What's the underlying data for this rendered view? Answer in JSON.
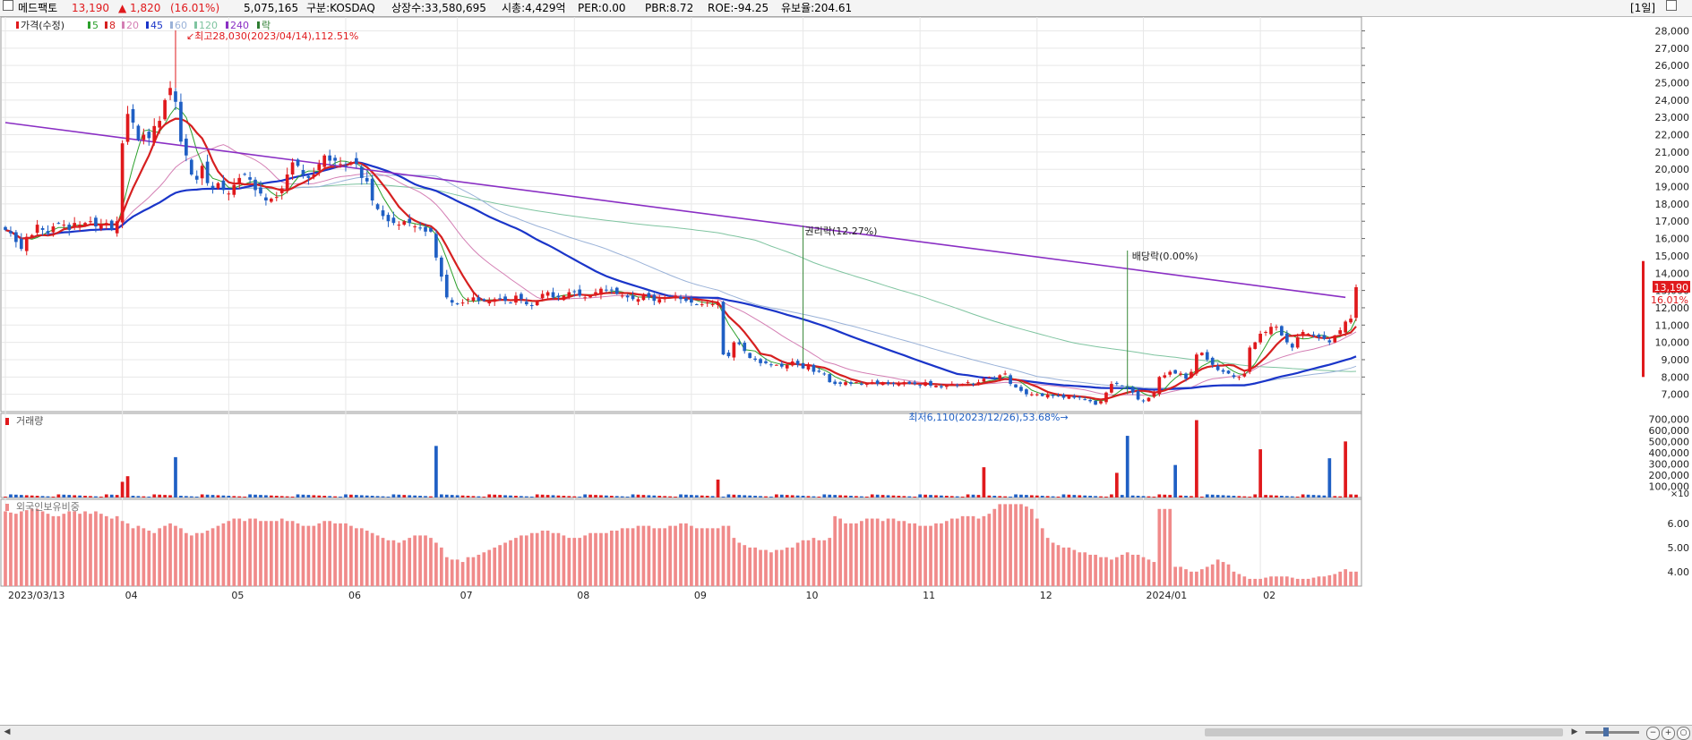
{
  "header": {
    "stock_name": "메드팩토",
    "price": "13,190",
    "change": "▲ 1,820",
    "change_pct": "(16.01%)",
    "volume": "5,075,165",
    "market": "구분:KOSDAQ",
    "shares": "상장수:33,580,695",
    "market_cap": "시총:4,429억",
    "per": "PER:0.00",
    "pbr": "PBR:8.72",
    "roe": "ROE:-94.25",
    "float_ratio": "유보율:204.61",
    "period_label": "[1일]"
  },
  "colors": {
    "up": "#e0191c",
    "down": "#1f5fc4",
    "ma5": "#2ca02c",
    "ma8": "#d62020",
    "ma20": "#d47fb4",
    "ma45": "#1a35c9",
    "ma60": "#9ab2d8",
    "ma120": "#7fc4a0",
    "ma240": "#8a2fc4",
    "foreign_bar": "#f08a8a",
    "grid": "#e8e8e8"
  },
  "chart_data": [
    {
      "type": "candlestick",
      "title": "",
      "legend": [
        "가격(수정)",
        "5",
        "8",
        "20",
        "45",
        "60",
        "120",
        "240",
        "락"
      ],
      "x_labels": [
        "2023/03/13",
        "04",
        "05",
        "06",
        "07",
        "08",
        "09",
        "10",
        "11",
        "12",
        "2024/01",
        "02"
      ],
      "y_ticks": [
        7000,
        8000,
        9000,
        10000,
        11000,
        12000,
        13000,
        14000,
        15000,
        16000,
        17000,
        18000,
        19000,
        20000,
        21000,
        22000,
        23000,
        24000,
        25000,
        26000,
        27000,
        28000
      ],
      "y_tick_labels": [
        "7,000",
        "8,000",
        "9,000",
        "10,000",
        "11,000",
        "12,000",
        "13,000",
        "14,000",
        "15,000",
        "16,000",
        "17,000",
        "18,000",
        "19,000",
        "20,000",
        "21,000",
        "22,000",
        "23,000",
        "24,000",
        "25,000",
        "26,000",
        "27,000",
        "28,000"
      ],
      "ylim": [
        6000,
        28800
      ],
      "price_close_series": [
        16500,
        16300,
        15800,
        15400,
        16100,
        16200,
        16800,
        16500,
        16300,
        16700,
        16900,
        16800,
        16500,
        16900,
        16800,
        16900,
        17000,
        16700,
        16800,
        16900,
        16500,
        17000,
        21500,
        23200,
        22700,
        21700,
        22000,
        21800,
        22500,
        22800,
        24000,
        24700,
        23900,
        21600,
        20800,
        19700,
        19400,
        20200,
        19200,
        18900,
        19200,
        18800,
        18600,
        19100,
        19500,
        19700,
        19400,
        18800,
        18600,
        18200,
        18300,
        18400,
        18900,
        19700,
        20400,
        20200,
        19700,
        19500,
        19700,
        20300,
        20800,
        20500,
        20500,
        20300,
        20200,
        20400,
        20300,
        19500,
        19300,
        18200,
        17700,
        17300,
        17000,
        16900,
        16800,
        17000,
        16900,
        16700,
        16600,
        16400,
        16400,
        14900,
        13800,
        12600,
        12300,
        12200,
        12300,
        12500,
        12600,
        12400,
        12400,
        12400,
        12500,
        12500,
        12400,
        12300,
        12700,
        12500,
        12200,
        12100,
        12400,
        12800,
        12900,
        12600,
        12600,
        12700,
        12900,
        12900,
        12700,
        12600,
        12700,
        12900,
        13100,
        13000,
        13000,
        12800,
        12700,
        12600,
        12500,
        12500,
        12800,
        12600,
        12400,
        12500,
        12600,
        12700,
        12700,
        12500,
        12400,
        12300,
        12200,
        12200,
        12300,
        12200,
        12300,
        9300,
        9200,
        10000,
        9900,
        9500,
        9100,
        9000,
        8800,
        8800,
        8700,
        8700,
        8600,
        8700,
        8900,
        8700,
        8500,
        8700,
        8300,
        8300,
        8200,
        7700,
        7600,
        7600,
        7700,
        7600,
        7700,
        7600,
        7600,
        7700,
        7600,
        7700,
        7600,
        7600,
        7600,
        7700,
        7600,
        7600,
        7500,
        7700,
        7500,
        7500,
        7400,
        7500,
        7600,
        7500,
        7600,
        7700,
        7600,
        7700,
        7900,
        8000,
        7900,
        8100,
        8200,
        7600,
        7400,
        7200,
        7000,
        7000,
        7000,
        6900,
        7000,
        6900,
        6900,
        6800,
        6900,
        6800,
        6800,
        6700,
        6600,
        6400,
        6600,
        7100,
        7600,
        7600,
        7500,
        7400,
        7100,
        6700,
        6600,
        6800,
        7100,
        8000,
        8100,
        8300,
        8200,
        8200,
        7900,
        8300,
        9300,
        9400,
        9000,
        8700,
        8400,
        8300,
        8200,
        8000,
        8000,
        8200,
        9700,
        10000,
        10500,
        10600,
        10900,
        10900,
        10400,
        10000,
        9700,
        10300,
        10600,
        10500,
        10400,
        10300,
        10200,
        10000,
        10400,
        10700,
        11200,
        11370,
        13190
      ],
      "ma240_endpoints": [
        [
          0,
          22700
        ],
        [
          210,
          14300
        ],
        [
          252,
          12600
        ]
      ],
      "annotations": [
        {
          "text": "최고28,030(2023/04/14),112.51%",
          "value": 28030
        },
        {
          "text": "최저6,110(2023/12/26),53.68%",
          "value": 6110
        },
        {
          "text": "권리락(12.27%)"
        },
        {
          "text": "배당락(0.00%)"
        }
      ],
      "last_price_label": "13,190",
      "last_change_label": "16.01%"
    },
    {
      "type": "bar",
      "title": "거래량",
      "y_ticks": [
        100000,
        200000,
        300000,
        400000,
        500000,
        600000,
        700000
      ],
      "y_tick_labels": [
        "100,000",
        "200,000",
        "300,000",
        "400,000",
        "500,000",
        "600,000",
        "700,000"
      ],
      "unit_label": "×10",
      "ylim": [
        0,
        750000
      ],
      "spikes": [
        {
          "index": 22,
          "value": 140000
        },
        {
          "index": 23,
          "value": 190000
        },
        {
          "index": 32,
          "value": 360000
        },
        {
          "index": 81,
          "value": 460000
        },
        {
          "index": 134,
          "value": 160000
        },
        {
          "index": 184,
          "value": 270000
        },
        {
          "index": 209,
          "value": 220000
        },
        {
          "index": 211,
          "value": 550000
        },
        {
          "index": 220,
          "value": 290000
        },
        {
          "index": 224,
          "value": 690000
        },
        {
          "index": 236,
          "value": 430000
        },
        {
          "index": 249,
          "value": 350000
        },
        {
          "index": 252,
          "value": 500000
        }
      ]
    },
    {
      "type": "bar",
      "title": "외국인보유비중",
      "y_ticks": [
        4.0,
        5.0,
        6.0
      ],
      "y_tick_labels": [
        "4.00",
        "5.00",
        "6.00"
      ],
      "ylim": [
        3.4,
        7.0
      ],
      "values": [
        6.5,
        6.45,
        6.4,
        6.5,
        6.55,
        6.6,
        6.6,
        6.5,
        6.4,
        6.3,
        6.3,
        6.4,
        6.5,
        6.5,
        6.4,
        6.5,
        6.4,
        6.5,
        6.4,
        6.3,
        6.2,
        6.3,
        6.1,
        6.0,
        5.8,
        5.9,
        5.8,
        5.7,
        5.6,
        5.8,
        5.9,
        6.0,
        5.9,
        5.8,
        5.6,
        5.5,
        5.6,
        5.6,
        5.7,
        5.8,
        5.9,
        6.0,
        6.1,
        6.2,
        6.2,
        6.1,
        6.2,
        6.2,
        6.1,
        6.1,
        6.1,
        6.1,
        6.2,
        6.1,
        6.1,
        6.0,
        5.9,
        5.9,
        5.9,
        6.0,
        6.1,
        6.1,
        6.0,
        6.0,
        6.0,
        5.9,
        5.8,
        5.8,
        5.7,
        5.6,
        5.5,
        5.4,
        5.3,
        5.3,
        5.2,
        5.3,
        5.4,
        5.5,
        5.5,
        5.5,
        5.4,
        5.2,
        5.0,
        4.6,
        4.5,
        4.5,
        4.4,
        4.6,
        4.6,
        4.7,
        4.8,
        4.9,
        5.0,
        5.1,
        5.2,
        5.3,
        5.4,
        5.5,
        5.5,
        5.6,
        5.6,
        5.7,
        5.7,
        5.6,
        5.6,
        5.5,
        5.4,
        5.4,
        5.4,
        5.5,
        5.6,
        5.6,
        5.6,
        5.6,
        5.7,
        5.7,
        5.8,
        5.8,
        5.8,
        5.9,
        5.9,
        5.9,
        5.8,
        5.8,
        5.8,
        5.9,
        5.9,
        6.0,
        6.0,
        5.9,
        5.8,
        5.8,
        5.8,
        5.8,
        5.8,
        5.9,
        5.9,
        5.4,
        5.2,
        5.1,
        5.0,
        5.0,
        4.9,
        4.9,
        4.8,
        4.9,
        4.9,
        5.0,
        5.0,
        5.2,
        5.3,
        5.3,
        5.4,
        5.3,
        5.3,
        5.4,
        6.3,
        6.2,
        6.0,
        6.0,
        6.0,
        6.1,
        6.2,
        6.2,
        6.2,
        6.1,
        6.2,
        6.2,
        6.1,
        6.1,
        6.0,
        6.0,
        5.9,
        5.9,
        5.9,
        6.0,
        6.0,
        6.1,
        6.2,
        6.2,
        6.3,
        6.3,
        6.3,
        6.2,
        6.3,
        6.4,
        6.6,
        6.8,
        6.8,
        6.8,
        6.8,
        6.8,
        6.7,
        6.6,
        6.2,
        5.8,
        5.4,
        5.2,
        5.1,
        5.0,
        5.0,
        4.9,
        4.8,
        4.8,
        4.7,
        4.7,
        4.6,
        4.6,
        4.5,
        4.6,
        4.7,
        4.8,
        4.7,
        4.7,
        4.6,
        4.5,
        4.4,
        6.6,
        6.6,
        6.6,
        4.2,
        4.2,
        4.1,
        4.0,
        4.0,
        4.1,
        4.2,
        4.3,
        4.5,
        4.4,
        4.3,
        4.0,
        3.9,
        3.8,
        3.7,
        3.7,
        3.7,
        3.75,
        3.8,
        3.8,
        3.8,
        3.8,
        3.75,
        3.7,
        3.7,
        3.7,
        3.75,
        3.8,
        3.8,
        3.85,
        3.9,
        4.0,
        4.1,
        4.0,
        4.0
      ]
    }
  ]
}
